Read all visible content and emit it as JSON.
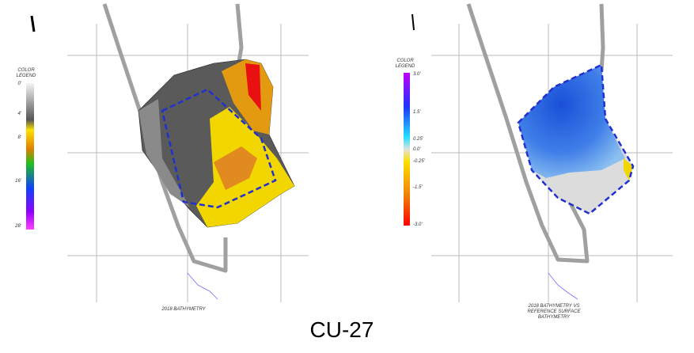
{
  "left_map": {
    "legend_title": [
      "COLOR",
      "LEGEND"
    ],
    "legend_labels": [
      "0'",
      "4'",
      "8'",
      "16'",
      "28'"
    ],
    "caption": "2018 BATHYMETRY"
  },
  "right_map": {
    "legend_title": [
      "COLOR",
      "LEGEND"
    ],
    "legend_labels": [
      "3.0'",
      "1.5'",
      "0.25'",
      "0.0'",
      "-0.25'",
      "-1.5'",
      "-3.0'"
    ],
    "caption_lines": [
      "2018 BATHYMETRY VS",
      "REFERENCE SURFACE",
      "BATHYMETRY"
    ]
  },
  "footer": {
    "label": "CU-27"
  }
}
